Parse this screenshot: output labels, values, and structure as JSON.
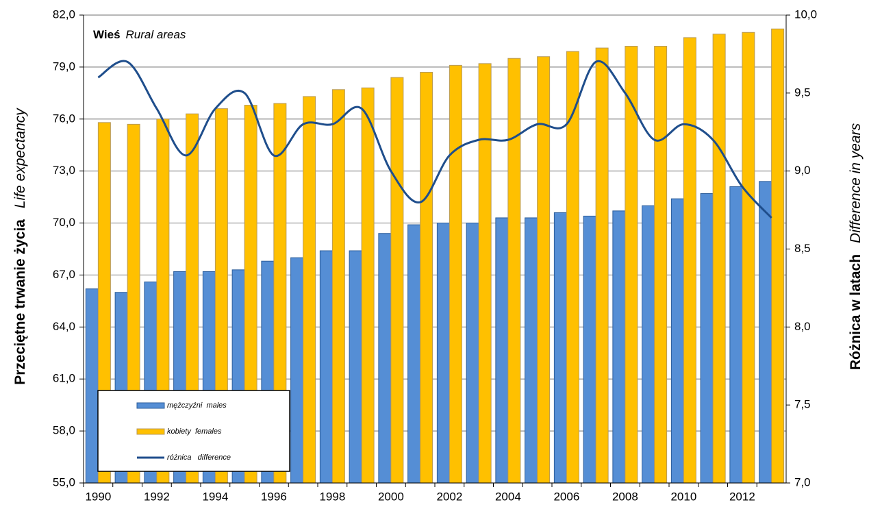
{
  "chart_data": {
    "type": "bar_line",
    "title": "Wieś",
    "subtitle": "Rural areas",
    "ylabel": "Przeciętne trwanie życia",
    "ylabel_en": "Life expectancy",
    "y2label": "Różnica w latach",
    "y2label_en": "Difference in years",
    "categories": [
      "1990",
      null,
      "1992",
      null,
      "1994",
      null,
      "1996",
      null,
      "1998",
      null,
      "2000",
      null,
      "2002",
      null,
      "2004",
      null,
      "2006",
      null,
      "2008",
      null,
      "2010",
      null,
      "2012",
      null
    ],
    "series": [
      {
        "name": "mężczyźni  males",
        "type": "bar",
        "color": "#558ed5",
        "values": [
          66.2,
          66.0,
          66.6,
          67.2,
          67.2,
          67.3,
          67.8,
          68.0,
          68.4,
          68.4,
          69.4,
          69.9,
          70.0,
          70.0,
          70.3,
          70.3,
          70.6,
          70.4,
          70.7,
          71.0,
          71.4,
          71.7,
          72.1,
          72.4
        ]
      },
      {
        "name": "kobiety  females",
        "type": "bar",
        "color": "#ffc000",
        "values": [
          75.8,
          75.7,
          76.0,
          76.3,
          76.6,
          76.8,
          76.9,
          77.3,
          77.7,
          77.8,
          78.4,
          78.7,
          79.1,
          79.2,
          79.5,
          79.6,
          79.9,
          80.1,
          80.2,
          80.2,
          80.7,
          80.9,
          81.0,
          81.2
        ]
      },
      {
        "name": "różnica   difference",
        "type": "line",
        "axis": "y2",
        "color": "#1f4e8c",
        "values": [
          9.6,
          9.7,
          9.4,
          9.1,
          9.4,
          9.5,
          9.1,
          9.3,
          9.3,
          9.4,
          9.0,
          8.8,
          9.1,
          9.2,
          9.2,
          9.3,
          9.3,
          9.7,
          9.5,
          9.2,
          9.3,
          9.2,
          8.9,
          8.7
        ]
      }
    ],
    "ylim": [
      55,
      82
    ],
    "yticks": [
      {
        "value": 55,
        "label": "55,0"
      },
      {
        "value": 58,
        "label": "58,0"
      },
      {
        "value": 61,
        "label": "61,0"
      },
      {
        "value": 64,
        "label": "64,0"
      },
      {
        "value": 67,
        "label": "67,0"
      },
      {
        "value": 70,
        "label": "70,0"
      },
      {
        "value": 73,
        "label": "73,0"
      },
      {
        "value": 76,
        "label": "76,0"
      },
      {
        "value": 79,
        "label": "79,0"
      },
      {
        "value": 82,
        "label": "82,0"
      }
    ],
    "y2lim": [
      7,
      10
    ],
    "y2ticks": [
      {
        "value": 7,
        "label": "7,0"
      },
      {
        "value": 7.5,
        "label": "7,5"
      },
      {
        "value": 8,
        "label": "8,0"
      },
      {
        "value": 8.5,
        "label": "8,5"
      },
      {
        "value": 9,
        "label": "9,0"
      },
      {
        "value": 9.5,
        "label": "9,5"
      },
      {
        "value": 10,
        "label": "10,0"
      }
    ],
    "grid": true,
    "legend": "lower left"
  }
}
